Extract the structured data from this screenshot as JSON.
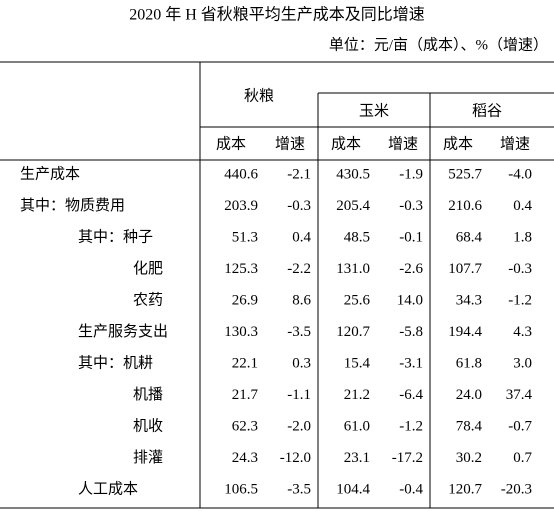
{
  "title": "2020 年 H 省秋粮平均生产成本及同比增速",
  "unit": "单位：元/亩（成本）、%（增速）",
  "table": {
    "groups": [
      "秋粮",
      "玉米",
      "稻谷"
    ],
    "subheaders": [
      "成本",
      "增速",
      "成本",
      "增速",
      "成本",
      "增速"
    ],
    "rows": [
      {
        "label": "生产成本",
        "cells": [
          "440.6",
          "-2.1",
          "430.5",
          "-1.9",
          "525.7",
          "-4.0"
        ]
      },
      {
        "label": "其中：物质费用",
        "cells": [
          "203.9",
          "-0.3",
          "205.4",
          "-0.3",
          "210.6",
          "0.4"
        ]
      },
      {
        "label": "其中：种子",
        "cells": [
          "51.3",
          "0.4",
          "48.5",
          "-0.1",
          "68.4",
          "1.8"
        ]
      },
      {
        "label": "化肥",
        "cells": [
          "125.3",
          "-2.2",
          "131.0",
          "-2.6",
          "107.7",
          "-0.3"
        ]
      },
      {
        "label": "农药",
        "cells": [
          "26.9",
          "8.6",
          "25.6",
          "14.0",
          "34.3",
          "-1.2"
        ]
      },
      {
        "label": "生产服务支出",
        "cells": [
          "130.3",
          "-3.5",
          "120.7",
          "-5.8",
          "194.4",
          "4.3"
        ]
      },
      {
        "label": "其中：机耕",
        "cells": [
          "22.1",
          "0.3",
          "15.4",
          "-3.1",
          "61.8",
          "3.0"
        ]
      },
      {
        "label": "机播",
        "cells": [
          "21.7",
          "-1.1",
          "21.2",
          "-6.4",
          "24.0",
          "37.4"
        ]
      },
      {
        "label": "机收",
        "cells": [
          "62.3",
          "-2.0",
          "61.0",
          "-1.2",
          "78.4",
          "-0.7"
        ]
      },
      {
        "label": "排灌",
        "cells": [
          "24.3",
          "-12.0",
          "23.1",
          "-17.2",
          "30.2",
          "0.7"
        ]
      },
      {
        "label": "人工成本",
        "cells": [
          "106.5",
          "-3.5",
          "104.4",
          "-0.4",
          "120.7",
          "-20.3"
        ]
      }
    ]
  }
}
